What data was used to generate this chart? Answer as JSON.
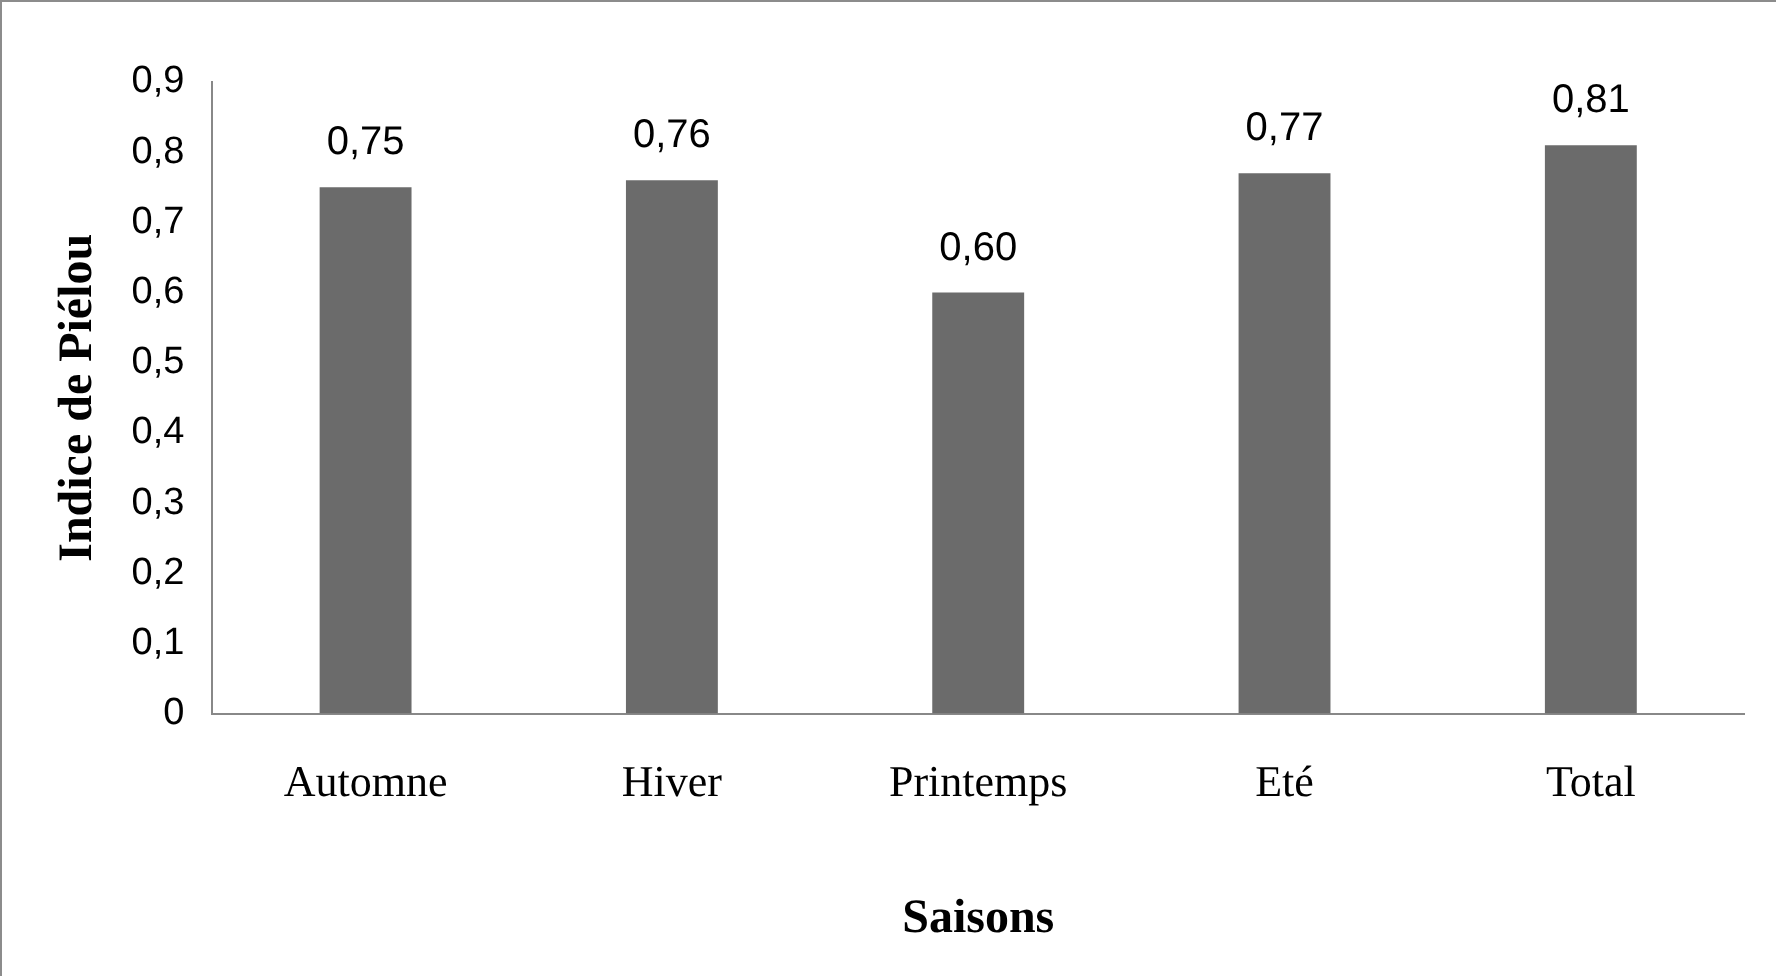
{
  "chart_data": {
    "type": "bar",
    "xlabel": "Saisons",
    "ylabel": "Indice de Piélou",
    "categories": [
      "Automne",
      "Hiver",
      "Printemps",
      "Eté",
      "Total"
    ],
    "values": [
      0.75,
      0.76,
      0.6,
      0.77,
      0.81
    ],
    "value_labels": [
      "0,75",
      "0,76",
      "0,60",
      "0,77",
      "0,81"
    ],
    "color": "#6b6b6b",
    "ylim": [
      0,
      0.9
    ],
    "yticks": [
      0,
      {
        "value": 0.1,
        "label": "0,1"
      },
      {
        "value": 0.2,
        "label": "0,2"
      },
      {
        "value": 0.3,
        "label": "0,3"
      },
      {
        "value": 0.4,
        "label": "0,4"
      },
      {
        "value": 0.5,
        "label": "0,5"
      },
      {
        "value": 0.6,
        "label": "0,6"
      },
      {
        "value": 0.7,
        "label": "0,7"
      },
      {
        "value": 0.8,
        "label": "0,8"
      },
      {
        "value": 0.9,
        "label": "0,9"
      }
    ],
    "grid": false,
    "legend": false
  }
}
